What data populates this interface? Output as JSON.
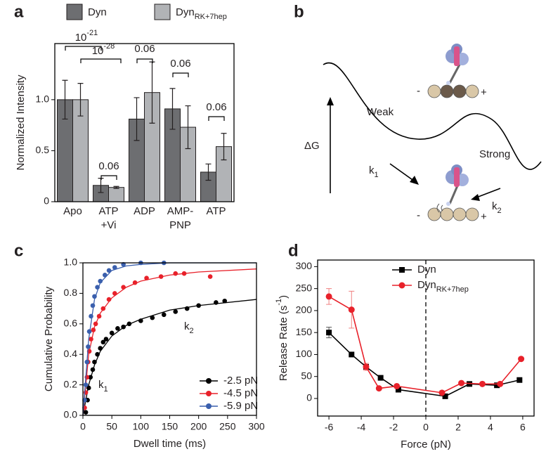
{
  "chart_data": [
    {
      "type": "bar",
      "panel_label": "a",
      "ylabel": "Normalized Intensity",
      "categories": [
        "Apo",
        "ATP\n+Vi",
        "ADP",
        "AMP-\nPNP",
        "ATP"
      ],
      "ylim": [
        0,
        1.55
      ],
      "yticks": [
        0,
        0.5,
        {
          "value": 1,
          "label": "1.0"
        }
      ],
      "series": [
        {
          "name": "Dyn",
          "color": "#6d6e71",
          "values": [
            1.0,
            0.16,
            0.81,
            0.91,
            0.29
          ],
          "errors": [
            0.19,
            0.07,
            0.21,
            0.2,
            0.08
          ]
        },
        {
          "name": "Dyn",
          "subscript": "RK+7hep",
          "color": "#b1b3b6",
          "values": [
            1.0,
            0.14,
            1.07,
            0.73,
            0.54
          ],
          "errors": [
            0.16,
            0.01,
            0.3,
            0.21,
            0.13
          ]
        }
      ],
      "annotations": [
        {
          "text": "10",
          "sup": "-21"
        },
        {
          "text": "10",
          "sup": "-28"
        },
        {
          "text": "0.06"
        },
        {
          "text": "0.06"
        },
        {
          "text": "0.06"
        },
        {
          "text": "0.06"
        }
      ]
    },
    {
      "type": "scatter",
      "panel_label": "c",
      "xlabel": "Dwell time (ms)",
      "ylabel": "Cumulative Probability",
      "xlim": [
        0,
        300
      ],
      "xticks": [
        0,
        50,
        100,
        150,
        200,
        250,
        300
      ],
      "ylim": [
        0,
        1
      ],
      "yticks": [
        {
          "value": 0,
          "label": "0.0"
        },
        0.2,
        0.4,
        0.6,
        0.8,
        {
          "value": 1,
          "label": "1.0"
        }
      ],
      "legend": "lower right",
      "fit_x": [
        0,
        10,
        20,
        30,
        50,
        75,
        100,
        150,
        200,
        300
      ],
      "series": [
        {
          "name": "-2.5 pN",
          "color": "#000000",
          "x": [
            5,
            8,
            10,
            13,
            17,
            20,
            25,
            30,
            35,
            40,
            50,
            60,
            70,
            80,
            100,
            120,
            140,
            160,
            180,
            200,
            230,
            245
          ],
          "values": [
            0.02,
            0.1,
            0.18,
            0.25,
            0.3,
            0.35,
            0.4,
            0.44,
            0.48,
            0.5,
            0.54,
            0.57,
            0.58,
            0.6,
            0.62,
            0.64,
            0.66,
            0.68,
            0.7,
            0.72,
            0.74,
            0.75
          ],
          "fit_values": [
            0,
            0.2,
            0.33,
            0.42,
            0.52,
            0.59,
            0.63,
            0.69,
            0.72,
            0.76
          ]
        },
        {
          "name": "-4.5 pN",
          "color": "#e8212a",
          "x": [
            3,
            5,
            7,
            9,
            11,
            14,
            18,
            22,
            28,
            35,
            45,
            55,
            70,
            90,
            110,
            135,
            160,
            175,
            220
          ],
          "values": [
            0.05,
            0.15,
            0.25,
            0.35,
            0.42,
            0.5,
            0.56,
            0.6,
            0.65,
            0.7,
            0.76,
            0.8,
            0.84,
            0.87,
            0.9,
            0.91,
            0.93,
            0.93,
            0.91
          ],
          "fit_values": [
            0,
            0.4,
            0.58,
            0.67,
            0.77,
            0.84,
            0.88,
            0.92,
            0.94,
            0.96
          ]
        },
        {
          "name": "-5.9 pN",
          "color": "#3a5fad",
          "x": [
            3,
            5,
            7,
            9,
            11,
            14,
            17,
            20,
            25,
            30,
            38,
            45,
            55,
            70,
            100,
            140
          ],
          "values": [
            0.1,
            0.2,
            0.35,
            0.45,
            0.55,
            0.65,
            0.72,
            0.78,
            0.84,
            0.88,
            0.92,
            0.95,
            0.97,
            0.99,
            1.0,
            1.0
          ],
          "fit_values": [
            0,
            0.5,
            0.76,
            0.87,
            0.95,
            0.98,
            0.99,
            1.0,
            1.0,
            1.0
          ]
        }
      ],
      "annotations": [
        {
          "text": "k",
          "sub": "1"
        },
        {
          "text": "k",
          "sub": "2"
        }
      ]
    },
    {
      "type": "line",
      "panel_label": "d",
      "xlabel": "Force (pN)",
      "ylabel": {
        "text": "Release Rate (s",
        "sup": "-1",
        "tail": ")"
      },
      "xlim": [
        -6.7,
        6.7
      ],
      "xticks": [
        -6,
        -4,
        -2,
        0,
        2,
        4,
        6
      ],
      "ylim": [
        -40,
        315
      ],
      "yticks": [
        0,
        50,
        100,
        150,
        200,
        250,
        300
      ],
      "vline": 0,
      "legend": "upper right",
      "series": [
        {
          "name": "Dyn",
          "color": "#000000",
          "marker": "square",
          "x": [
            -6,
            -4.6,
            -3.7,
            -2.8,
            -1.7,
            1.2,
            2.7,
            4.4,
            5.8
          ],
          "values": [
            150,
            100,
            72,
            47,
            20,
            5,
            33,
            30,
            42
          ],
          "errors": [
            12,
            null,
            null,
            null,
            null,
            null,
            null,
            null,
            null
          ]
        },
        {
          "name": "Dyn",
          "subscript": "RK+7hep",
          "color": "#e8212a",
          "marker": "circle",
          "x": [
            -6,
            -4.6,
            -3.7,
            -2.9,
            -1.8,
            1.0,
            2.2,
            3.5,
            4.6,
            5.9
          ],
          "values": [
            232,
            202,
            72,
            23,
            28,
            13,
            35,
            33,
            33,
            90
          ],
          "errors": [
            18,
            42,
            8,
            null,
            null,
            null,
            null,
            null,
            null,
            null
          ]
        }
      ]
    }
  ],
  "diagram": {
    "panel_label": "b",
    "well_labels": [
      "Weak",
      "Strong"
    ],
    "axis_label": "ΔG",
    "rates": [
      {
        "text": "k",
        "sub": "1"
      },
      {
        "text": "k",
        "sub": "2"
      }
    ],
    "ends": [
      "-",
      "+"
    ]
  }
}
